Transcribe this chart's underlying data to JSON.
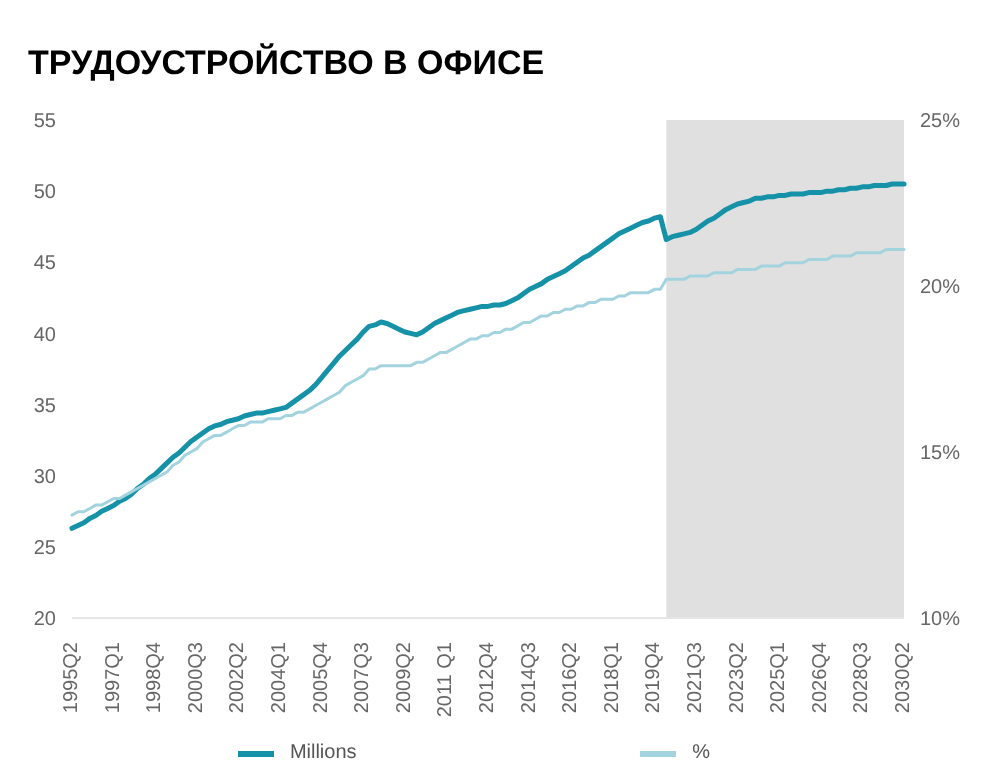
{
  "chart_data": {
    "type": "line",
    "title": "ТРУДОУСТРОЙСТВО В ОФИСЕ",
    "categories": [
      "1995Q2",
      null,
      null,
      null,
      null,
      null,
      null,
      "1997Q1",
      null,
      null,
      null,
      null,
      null,
      null,
      "1998Q4",
      null,
      null,
      null,
      null,
      null,
      null,
      "2000Q3",
      null,
      null,
      null,
      null,
      null,
      null,
      "2002Q2",
      null,
      null,
      null,
      null,
      null,
      null,
      "2004Q1",
      null,
      null,
      null,
      null,
      null,
      null,
      "2005Q4",
      null,
      null,
      null,
      null,
      null,
      null,
      "2007Q3",
      null,
      null,
      null,
      null,
      null,
      null,
      "2009Q2",
      null,
      null,
      null,
      null,
      null,
      null,
      "2011 Q1",
      null,
      null,
      null,
      null,
      null,
      null,
      "2012Q4",
      null,
      null,
      null,
      null,
      null,
      null,
      "2014Q3",
      null,
      null,
      null,
      null,
      null,
      null,
      "2016Q2",
      null,
      null,
      null,
      null,
      null,
      null,
      "2018Q1",
      null,
      null,
      null,
      null,
      null,
      null,
      "2019Q4",
      null,
      null,
      null,
      null,
      null,
      null,
      "2021Q3",
      null,
      null,
      null,
      null,
      null,
      null,
      "2023Q2",
      null,
      null,
      null,
      null,
      null,
      null,
      "2025Q1",
      null,
      null,
      null,
      null,
      null,
      null,
      "2026Q4",
      null,
      null,
      null,
      null,
      null,
      null,
      "2028Q3",
      null,
      null,
      null,
      null,
      null,
      null,
      "2030Q2"
    ],
    "series": [
      {
        "name": "Millions",
        "color": "#1591a8",
        "values": [
          26.3,
          26.5,
          26.7,
          27.0,
          27.2,
          27.5,
          27.7,
          27.9,
          28.2,
          28.4,
          28.7,
          29.1,
          29.4,
          29.8,
          30.1,
          30.5,
          30.9,
          31.3,
          31.6,
          32.0,
          32.4,
          32.7,
          33.0,
          33.3,
          33.5,
          33.6,
          33.8,
          33.9,
          34.0,
          34.2,
          34.3,
          34.4,
          34.4,
          34.5,
          34.6,
          34.7,
          34.8,
          35.1,
          35.4,
          35.7,
          36.0,
          36.4,
          36.9,
          37.4,
          37.9,
          38.4,
          38.8,
          39.2,
          39.6,
          40.1,
          40.5,
          40.6,
          40.8,
          40.7,
          40.5,
          40.3,
          40.1,
          40.0,
          39.9,
          40.1,
          40.4,
          40.7,
          40.9,
          41.1,
          41.3,
          41.5,
          41.6,
          41.7,
          41.8,
          41.9,
          41.9,
          42.0,
          42.0,
          42.1,
          42.3,
          42.5,
          42.8,
          43.1,
          43.3,
          43.5,
          43.8,
          44.0,
          44.2,
          44.4,
          44.7,
          45.0,
          45.3,
          45.5,
          45.8,
          46.1,
          46.4,
          46.7,
          47.0,
          47.2,
          47.4,
          47.6,
          47.8,
          47.9,
          48.1,
          48.2,
          46.6,
          46.8,
          46.9,
          47.0,
          47.1,
          47.3,
          47.6,
          47.9,
          48.1,
          48.4,
          48.7,
          48.9,
          49.1,
          49.2,
          49.3,
          49.5,
          49.5,
          49.6,
          49.6,
          49.7,
          49.7,
          49.8,
          49.8,
          49.8,
          49.9,
          49.9,
          49.9,
          50.0,
          50.0,
          50.1,
          50.1,
          50.2,
          50.2,
          50.3,
          50.3,
          50.4,
          50.4,
          50.4,
          50.5,
          50.5,
          50.5
        ]
      },
      {
        "name": "%",
        "color": "#a3d3de",
        "axis": "y2",
        "values": [
          13.1,
          13.2,
          13.2,
          13.3,
          13.4,
          13.4,
          13.5,
          13.6,
          13.6,
          13.7,
          13.8,
          13.9,
          14.0,
          14.1,
          14.2,
          14.3,
          14.4,
          14.6,
          14.7,
          14.9,
          15.0,
          15.1,
          15.3,
          15.4,
          15.5,
          15.5,
          15.6,
          15.7,
          15.8,
          15.8,
          15.9,
          15.9,
          15.9,
          16.0,
          16.0,
          16.0,
          16.1,
          16.1,
          16.2,
          16.2,
          16.3,
          16.4,
          16.5,
          16.6,
          16.7,
          16.8,
          17.0,
          17.1,
          17.2,
          17.3,
          17.5,
          17.5,
          17.6,
          17.6,
          17.6,
          17.6,
          17.6,
          17.6,
          17.7,
          17.7,
          17.8,
          17.9,
          18.0,
          18.0,
          18.1,
          18.2,
          18.3,
          18.4,
          18.4,
          18.5,
          18.5,
          18.6,
          18.6,
          18.7,
          18.7,
          18.8,
          18.9,
          18.9,
          19.0,
          19.1,
          19.1,
          19.2,
          19.2,
          19.3,
          19.3,
          19.4,
          19.4,
          19.5,
          19.5,
          19.6,
          19.6,
          19.6,
          19.7,
          19.7,
          19.8,
          19.8,
          19.8,
          19.8,
          19.9,
          19.9,
          20.2,
          20.2,
          20.2,
          20.2,
          20.3,
          20.3,
          20.3,
          20.3,
          20.4,
          20.4,
          20.4,
          20.4,
          20.5,
          20.5,
          20.5,
          20.5,
          20.6,
          20.6,
          20.6,
          20.6,
          20.7,
          20.7,
          20.7,
          20.7,
          20.8,
          20.8,
          20.8,
          20.8,
          20.9,
          20.9,
          20.9,
          20.9,
          21.0,
          21.0,
          21.0,
          21.0,
          21.0,
          21.1,
          21.1,
          21.1,
          21.1
        ]
      }
    ],
    "ylim": [
      20,
      55
    ],
    "yticks": [
      20,
      25,
      30,
      35,
      40,
      45,
      50,
      55
    ],
    "y2lim": [
      10,
      25
    ],
    "y2ticks": [
      {
        "value": 10,
        "label": "10%"
      },
      {
        "value": 15,
        "label": "15%"
      },
      {
        "value": 20,
        "label": "20%"
      },
      {
        "value": 25,
        "label": "25%"
      }
    ],
    "grid": false,
    "legend": "bottom",
    "marker": "none",
    "line_style": "solid"
  }
}
